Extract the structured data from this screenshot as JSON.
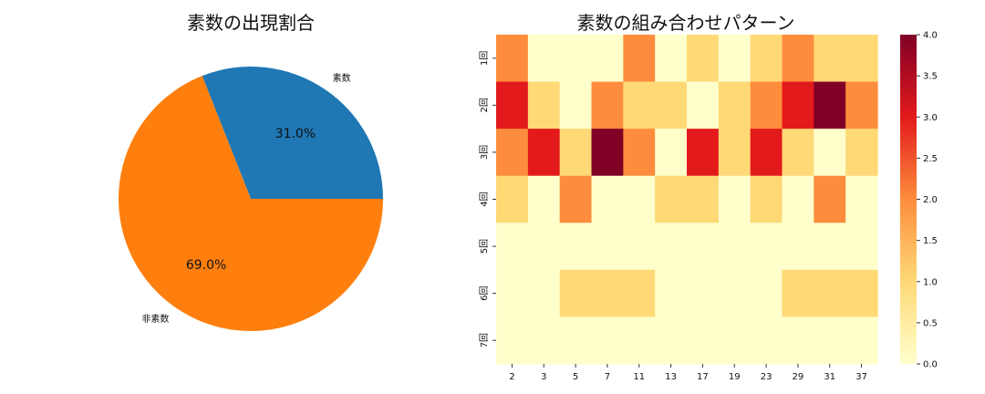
{
  "chart_data": [
    {
      "type": "pie",
      "title": "素数の出現割合",
      "categories": [
        "素数",
        "非素数"
      ],
      "values": [
        31.0,
        69.0
      ],
      "value_labels": [
        "31.0%",
        "69.0%"
      ],
      "colors": [
        "#1f77b4",
        "#ff7f0e"
      ]
    },
    {
      "type": "heatmap",
      "title": "素数の組み合わせパターン",
      "x_categories": [
        "2",
        "3",
        "5",
        "7",
        "11",
        "13",
        "17",
        "19",
        "23",
        "29",
        "31",
        "37"
      ],
      "y_categories": [
        "1回",
        "2回",
        "3回",
        "4回",
        "5回",
        "6回",
        "7回"
      ],
      "values": [
        [
          2,
          0,
          0,
          0,
          2,
          0,
          1,
          0,
          1,
          2,
          1,
          1
        ],
        [
          3,
          1,
          0,
          2,
          1,
          1,
          0,
          1,
          2,
          3,
          4,
          2
        ],
        [
          2,
          3,
          1,
          4,
          2,
          0,
          3,
          1,
          3,
          1,
          0,
          1
        ],
        [
          1,
          0,
          2,
          0,
          0,
          1,
          1,
          0,
          1,
          0,
          2,
          0
        ],
        [
          0,
          0,
          0,
          0,
          0,
          0,
          0,
          0,
          0,
          0,
          0,
          0
        ],
        [
          0,
          0,
          1,
          1,
          1,
          0,
          0,
          0,
          0,
          1,
          1,
          1
        ],
        [
          0,
          0,
          0,
          0,
          0,
          0,
          0,
          0,
          0,
          0,
          0,
          0
        ]
      ],
      "colormap": "YlOrRd",
      "colorbar": {
        "min": 0.0,
        "max": 4.0,
        "ticks": [
          "0.0",
          "0.5",
          "1.0",
          "1.5",
          "2.0",
          "2.5",
          "3.0",
          "3.5",
          "4.0"
        ]
      }
    }
  ]
}
